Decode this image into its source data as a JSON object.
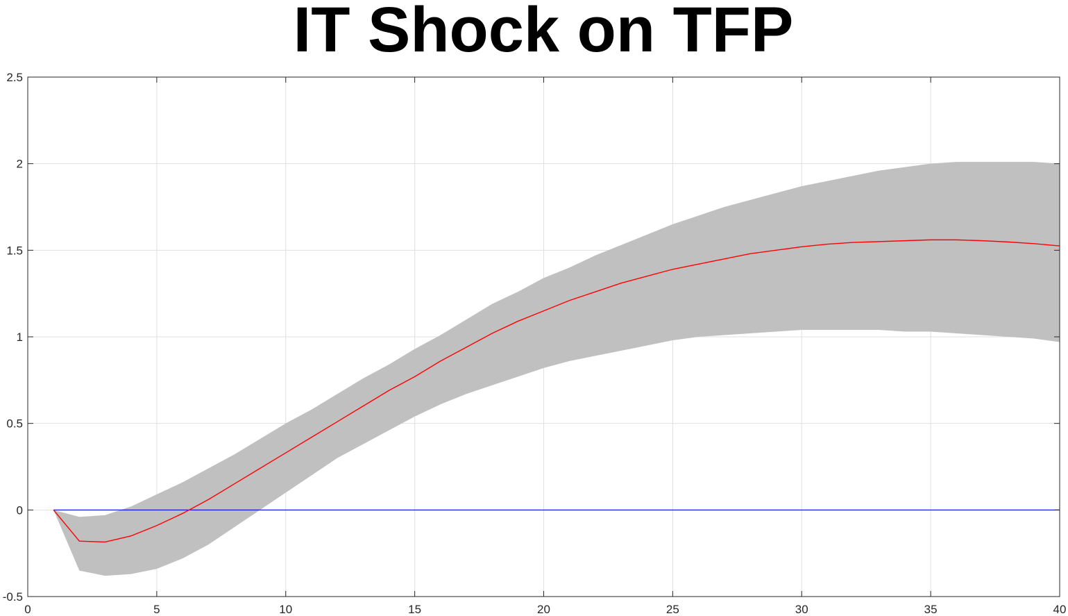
{
  "chart_data": {
    "type": "line",
    "title": "IT Shock on TFP",
    "xlabel": "",
    "ylabel": "",
    "xlim": [
      0,
      40
    ],
    "ylim": [
      -0.5,
      2.5
    ],
    "grid": true,
    "x_ticks": [
      "0",
      "5",
      "10",
      "15",
      "20",
      "25",
      "30",
      "35",
      "40"
    ],
    "y_ticks": [
      "-0.5",
      "0",
      "0.5",
      "1",
      "1.5",
      "2",
      "2.5"
    ],
    "x": [
      1,
      2,
      3,
      4,
      5,
      6,
      7,
      8,
      9,
      10,
      11,
      12,
      13,
      14,
      15,
      16,
      17,
      18,
      19,
      20,
      21,
      22,
      23,
      24,
      25,
      26,
      27,
      28,
      29,
      30,
      31,
      32,
      33,
      34,
      35,
      36,
      37,
      38,
      39,
      40
    ],
    "series": [
      {
        "role": "confidence-band",
        "color": "#c0c0c0",
        "upper": [
          0.0,
          -0.04,
          -0.03,
          0.02,
          0.09,
          0.16,
          0.24,
          0.32,
          0.41,
          0.5,
          0.58,
          0.67,
          0.76,
          0.84,
          0.93,
          1.01,
          1.1,
          1.19,
          1.26,
          1.34,
          1.4,
          1.47,
          1.53,
          1.59,
          1.65,
          1.7,
          1.75,
          1.79,
          1.83,
          1.87,
          1.9,
          1.93,
          1.96,
          1.98,
          2.0,
          2.01,
          2.01,
          2.01,
          2.01,
          2.0
        ],
        "lower": [
          0.0,
          -0.35,
          -0.38,
          -0.37,
          -0.34,
          -0.28,
          -0.2,
          -0.1,
          0.0,
          0.1,
          0.2,
          0.3,
          0.38,
          0.46,
          0.54,
          0.61,
          0.67,
          0.72,
          0.77,
          0.82,
          0.86,
          0.89,
          0.92,
          0.95,
          0.98,
          1.0,
          1.01,
          1.02,
          1.03,
          1.04,
          1.04,
          1.04,
          1.04,
          1.03,
          1.03,
          1.02,
          1.01,
          1.0,
          0.99,
          0.97
        ]
      },
      {
        "role": "impulse-response",
        "color": "#ff0000",
        "values": [
          0.0,
          -0.18,
          -0.185,
          -0.15,
          -0.09,
          -0.02,
          0.06,
          0.15,
          0.24,
          0.33,
          0.42,
          0.51,
          0.6,
          0.69,
          0.77,
          0.86,
          0.94,
          1.02,
          1.09,
          1.15,
          1.21,
          1.26,
          1.31,
          1.35,
          1.39,
          1.42,
          1.45,
          1.48,
          1.5,
          1.52,
          1.535,
          1.545,
          1.55,
          1.555,
          1.56,
          1.56,
          1.555,
          1.548,
          1.538,
          1.525
        ]
      },
      {
        "role": "zero-line",
        "color": "#0000ff",
        "values": [
          0,
          0,
          0,
          0,
          0,
          0,
          0,
          0,
          0,
          0,
          0,
          0,
          0,
          0,
          0,
          0,
          0,
          0,
          0,
          0,
          0,
          0,
          0,
          0,
          0,
          0,
          0,
          0,
          0,
          0,
          0,
          0,
          0,
          0,
          0,
          0,
          0,
          0,
          0,
          0
        ]
      }
    ]
  }
}
